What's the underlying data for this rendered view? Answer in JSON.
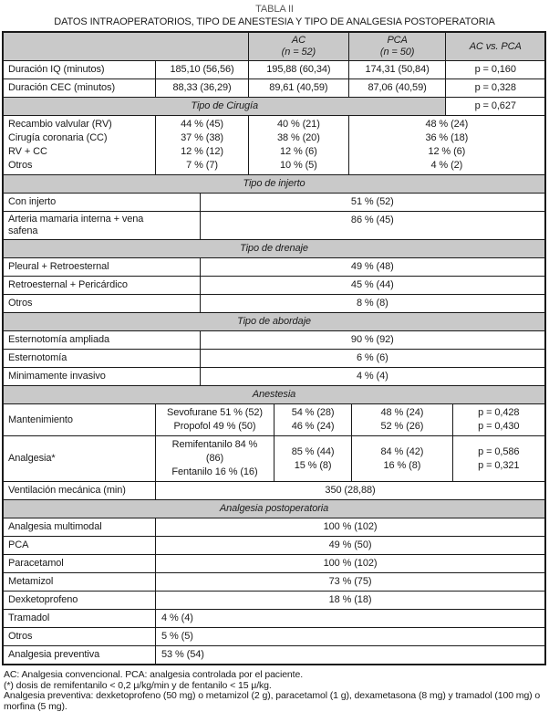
{
  "title": "TABLA II",
  "subtitle": "DATOS INTRAOPERATORIOS, TIPO DE ANESTESIA Y TIPO DE ANALGESIA POSTOPERATORIA",
  "colors": {
    "band": "#c9c9c9",
    "border": "#1a1a1a",
    "text": "#1a1a1a"
  },
  "rows": [
    {
      "layout": "head",
      "cells": [
        {
          "t": ""
        },
        {
          "t": "AC\n(n = 52)"
        },
        {
          "t": "PCA\n(n = 50)"
        },
        {
          "t": "AC vs. PCA"
        }
      ]
    },
    {
      "layout": "r5",
      "cells": [
        {
          "t": "Duración IQ (minutos)"
        },
        {
          "t": "185,10 (56,56)"
        },
        {
          "t": "195,88 (60,34)"
        },
        {
          "t": "174,31 (50,84)"
        },
        {
          "t": "p = 0,160"
        }
      ]
    },
    {
      "layout": "r5",
      "cells": [
        {
          "t": "Duración CEC (minutos)"
        },
        {
          "t": "88,33 (36,29)"
        },
        {
          "t": "89,61 (40,59)"
        },
        {
          "t": "87,06 (40,59)"
        },
        {
          "t": "p = 0,328"
        }
      ]
    },
    {
      "layout": "sec4",
      "cells": [
        {
          "t": "Tipo de Cirugía"
        },
        {
          "t": "p = 0,627"
        }
      ]
    },
    {
      "layout": "multi4",
      "cells": [
        {
          "t": "Recambio valvular (RV)\nCirugía coronaria (CC)\nRV + CC\nOtros"
        },
        {
          "t": "44 % (45)\n37 % (38)\n12 % (12)\n7 % (7)"
        },
        {
          "t": "40 % (21)\n38 % (20)\n12 % (6)\n10 % (5)"
        },
        {
          "t": "48 % (24)\n36 % (18)\n12 % (6)\n4 % (2)"
        }
      ]
    },
    {
      "layout": "sec",
      "cells": [
        {
          "t": "Tipo de injerto"
        }
      ]
    },
    {
      "layout": "wide2c",
      "cells": [
        {
          "t": "Con injerto"
        },
        {
          "t": "51 % (52)"
        }
      ]
    },
    {
      "layout": "wide2c",
      "vtop": true,
      "cells": [
        {
          "t": "Arteria mamaria interna + vena\nsafena"
        },
        {
          "t": "86 % (45)"
        }
      ]
    },
    {
      "layout": "sec",
      "cells": [
        {
          "t": "Tipo de drenaje"
        }
      ]
    },
    {
      "layout": "wide2c",
      "cells": [
        {
          "t": "Pleural + Retroesternal"
        },
        {
          "t": "49 % (48)"
        }
      ]
    },
    {
      "layout": "wide2c",
      "cells": [
        {
          "t": "Retroesternal + Pericárdico"
        },
        {
          "t": "45 % (44)"
        }
      ]
    },
    {
      "layout": "wide2c",
      "cells": [
        {
          "t": "Otros"
        },
        {
          "t": "8 % (8)"
        }
      ]
    },
    {
      "layout": "sec",
      "cells": [
        {
          "t": "Tipo de abordaje"
        }
      ]
    },
    {
      "layout": "wide2c",
      "cells": [
        {
          "t": "Esternotomía ampliada"
        },
        {
          "t": "90 % (92)"
        }
      ]
    },
    {
      "layout": "wide2c",
      "cells": [
        {
          "t": "Esternotomía"
        },
        {
          "t": "6 % (6)"
        }
      ]
    },
    {
      "layout": "wide2c",
      "cells": [
        {
          "t": "Minimamente invasivo"
        },
        {
          "t": "4 % (4)"
        }
      ]
    },
    {
      "layout": "sec",
      "cells": [
        {
          "t": "Anestesia"
        }
      ]
    },
    {
      "layout": "anes5",
      "cells": [
        {
          "t": "Mantenimiento"
        },
        {
          "t": "Sevofurane 51 % (52)\nPropofol 49 % (50)"
        },
        {
          "t": "54 % (28)\n46 % (24)"
        },
        {
          "t": "48 % (24)\n52 % (26)"
        },
        {
          "t": "p = 0,428\np = 0,430"
        }
      ]
    },
    {
      "layout": "anes5",
      "cells": [
        {
          "t": "Analgesia*"
        },
        {
          "t": "Remifentanilo 84 %\n(86)\nFentanilo 16 % (16)"
        },
        {
          "t": "85 % (44)\n15 % (8)"
        },
        {
          "t": "84 % (42)\n16 % (8)"
        },
        {
          "t": "p = 0,586\np = 0,321"
        }
      ]
    },
    {
      "layout": "span2c",
      "cells": [
        {
          "t": "Ventilación mecánica (min)"
        },
        {
          "t": "350 (28,88)"
        }
      ]
    },
    {
      "layout": "sec",
      "cells": [
        {
          "t": "Analgesia postoperatoria"
        }
      ]
    },
    {
      "layout": "span2c",
      "cells": [
        {
          "t": "Analgesia multimodal"
        },
        {
          "t": "100 % (102)"
        }
      ]
    },
    {
      "layout": "span2c",
      "cells": [
        {
          "t": "PCA"
        },
        {
          "t": "49 % (50)"
        }
      ]
    },
    {
      "layout": "span2c",
      "cells": [
        {
          "t": "Paracetamol"
        },
        {
          "t": "100 % (102)"
        }
      ]
    },
    {
      "layout": "span2c",
      "cells": [
        {
          "t": "Metamizol"
        },
        {
          "t": "73 % (75)"
        }
      ]
    },
    {
      "layout": "span2c",
      "cells": [
        {
          "t": "Dexketoprofeno"
        },
        {
          "t": "18 % (18)"
        }
      ]
    },
    {
      "layout": "left2c",
      "cells": [
        {
          "t": "Tramadol"
        },
        {
          "t": "4 % (4)"
        }
      ]
    },
    {
      "layout": "left2c",
      "cells": [
        {
          "t": "Otros"
        },
        {
          "t": "5 % (5)"
        }
      ]
    },
    {
      "layout": "left2c",
      "cells": [
        {
          "t": "Analgesia preventiva"
        },
        {
          "t": "53 % (54)"
        }
      ]
    }
  ],
  "footnotes": [
    "AC: Analgesia convencional. PCA: analgesia controlada por el paciente.",
    "(*) dosis de remifentanilo < 0,2 μ/kg/min y de fentanilo < 15 μ/kg.",
    "Analgesia preventiva: dexketoprofeno (50 mg) o metamizol (2 g), paracetamol (1 g), dexametasona (8 mg) y tramadol (100 mg) o morfina (5 mg)."
  ]
}
